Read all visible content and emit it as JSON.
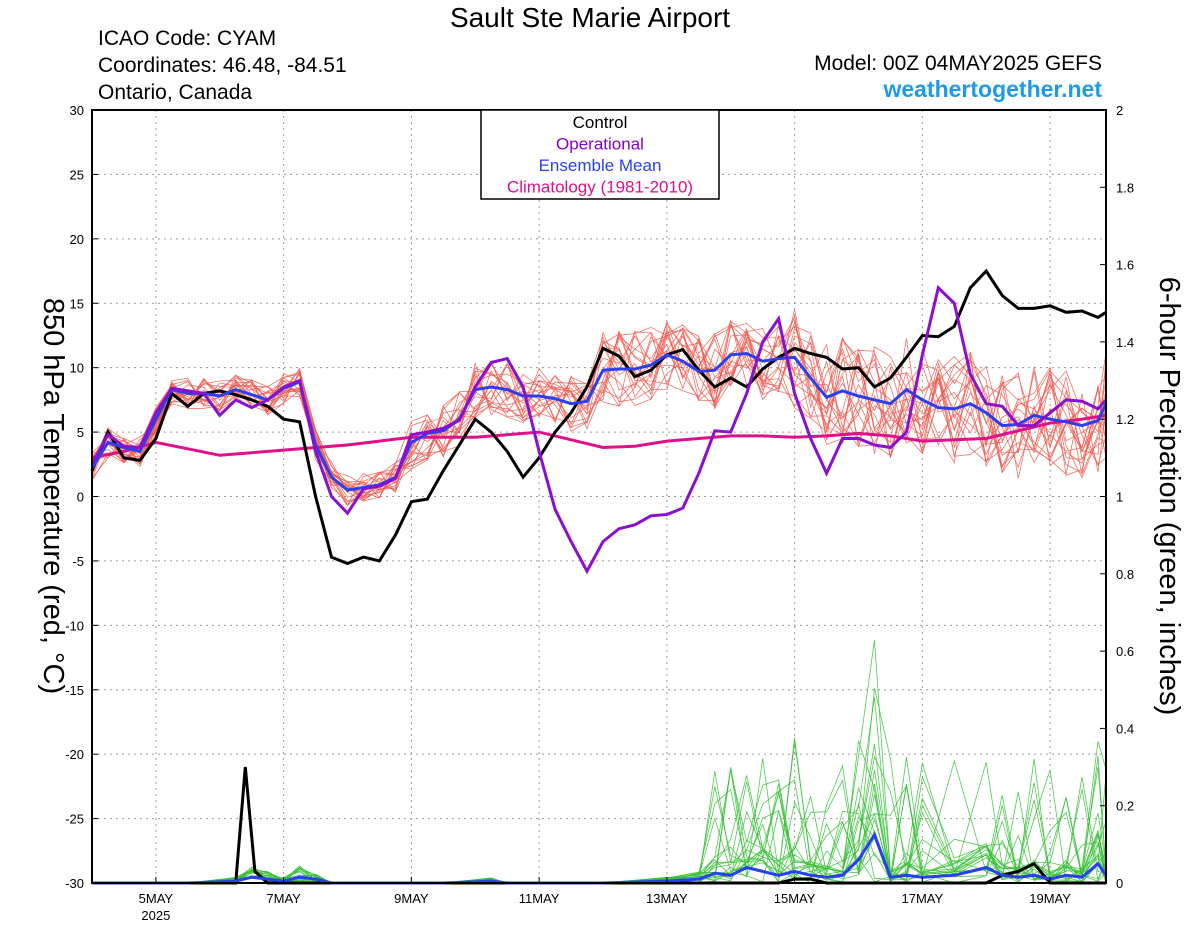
{
  "header": {
    "title": "Sault Ste Marie Airport",
    "icao": "ICAO Code: CYAM",
    "coordinates": "Coordinates: 46.48, -84.51",
    "region": "Ontario, Canada",
    "model": "Model: 00Z 04MAY2025 GEFS",
    "website": "weathertogether.net"
  },
  "chart_data": {
    "type": "line",
    "ylabel_left": "850 hPa Temperature (red, °C)",
    "ylabel_right": "6-hour Precipation (green, inches)",
    "ylim_left": [
      -30,
      30
    ],
    "ylim_right": [
      0,
      2
    ],
    "yticks_left": [
      30,
      25,
      20,
      15,
      10,
      5,
      0,
      -5,
      -10,
      -15,
      -20,
      -25,
      -30
    ],
    "yticks_right": [
      2,
      1.8,
      1.6,
      1.4,
      1.2,
      1,
      0.8,
      0.6,
      0.4,
      0.2,
      0
    ],
    "x_range_days": [
      4.0,
      19.875
    ],
    "xticks": [
      {
        "day": 5,
        "label": "5MAY",
        "sublabel": "2025"
      },
      {
        "day": 7,
        "label": "7MAY"
      },
      {
        "day": 9,
        "label": "9MAY"
      },
      {
        "day": 11,
        "label": "11MAY"
      },
      {
        "day": 13,
        "label": "13MAY"
      },
      {
        "day": 15,
        "label": "15MAY"
      },
      {
        "day": 17,
        "label": "17MAY"
      },
      {
        "day": 19,
        "label": "19MAY"
      }
    ],
    "grid": true,
    "legend_position": "top-center",
    "legend": [
      {
        "label": "Control",
        "color": "#000000"
      },
      {
        "label": "Operational",
        "color": "#8800cc"
      },
      {
        "label": "Ensemble Mean",
        "color": "#2a3ff0"
      },
      {
        "label": "Climatology (1981-2010)",
        "color": "#e0108a"
      }
    ],
    "colors": {
      "members": "#f05a50",
      "precip_members": "#34c034",
      "control": "#000000",
      "operational": "#8a10d0",
      "mean": "#2a3ff0",
      "climatology": "#e0108a"
    },
    "temperature": {
      "control": [
        [
          4.0,
          2.0
        ],
        [
          4.25,
          5.0
        ],
        [
          4.5,
          3.0
        ],
        [
          4.75,
          2.8
        ],
        [
          5.0,
          4.5
        ],
        [
          5.25,
          8.0
        ],
        [
          5.5,
          7.0
        ],
        [
          5.75,
          8.0
        ],
        [
          6.0,
          8.2
        ],
        [
          6.25,
          7.9
        ],
        [
          6.5,
          7.5
        ],
        [
          6.75,
          7.0
        ],
        [
          7.0,
          6.0
        ],
        [
          7.25,
          5.8
        ],
        [
          7.5,
          0.0
        ],
        [
          7.75,
          -4.7
        ],
        [
          8.0,
          -5.2
        ],
        [
          8.25,
          -4.7
        ],
        [
          8.5,
          -5.0
        ],
        [
          8.75,
          -3.0
        ],
        [
          9.0,
          -0.4
        ],
        [
          9.25,
          -0.2
        ],
        [
          9.5,
          2.0
        ],
        [
          9.75,
          4.0
        ],
        [
          10.0,
          6.0
        ],
        [
          10.25,
          5.0
        ],
        [
          10.5,
          3.5
        ],
        [
          10.75,
          1.5
        ],
        [
          11.0,
          3.0
        ],
        [
          11.25,
          5.0
        ],
        [
          11.5,
          6.5
        ],
        [
          11.75,
          8.5
        ],
        [
          12.0,
          11.5
        ],
        [
          12.25,
          10.9
        ],
        [
          12.5,
          9.3
        ],
        [
          12.75,
          9.8
        ],
        [
          13.0,
          11.0
        ],
        [
          13.25,
          11.4
        ],
        [
          13.5,
          9.8
        ],
        [
          13.75,
          8.5
        ],
        [
          14.0,
          9.2
        ],
        [
          14.25,
          8.5
        ],
        [
          14.5,
          9.9
        ],
        [
          14.75,
          10.8
        ],
        [
          15.0,
          11.5
        ],
        [
          15.25,
          11.1
        ],
        [
          15.5,
          10.8
        ],
        [
          15.75,
          9.9
        ],
        [
          16.0,
          10.0
        ],
        [
          16.25,
          8.5
        ],
        [
          16.5,
          9.2
        ],
        [
          16.75,
          10.8
        ],
        [
          17.0,
          12.5
        ],
        [
          17.25,
          12.4
        ],
        [
          17.5,
          13.2
        ],
        [
          17.75,
          16.2
        ],
        [
          18.0,
          17.5
        ],
        [
          18.25,
          15.6
        ],
        [
          18.5,
          14.6
        ],
        [
          18.75,
          14.6
        ],
        [
          19.0,
          14.8
        ],
        [
          19.25,
          14.3
        ],
        [
          19.5,
          14.4
        ],
        [
          19.75,
          13.9
        ],
        [
          19.875,
          14.3
        ]
      ],
      "operational": [
        [
          4.0,
          2.5
        ],
        [
          4.25,
          4.8
        ],
        [
          4.5,
          3.9
        ],
        [
          4.75,
          3.8
        ],
        [
          5.0,
          6.5
        ],
        [
          5.25,
          8.4
        ],
        [
          5.5,
          8.2
        ],
        [
          5.75,
          8.0
        ],
        [
          6.0,
          6.3
        ],
        [
          6.25,
          7.5
        ],
        [
          6.5,
          6.9
        ],
        [
          6.75,
          7.5
        ],
        [
          7.0,
          8.5
        ],
        [
          7.25,
          9.0
        ],
        [
          7.5,
          3.5
        ],
        [
          7.75,
          0.0
        ],
        [
          8.0,
          -1.3
        ],
        [
          8.25,
          0.6
        ],
        [
          8.5,
          0.8
        ],
        [
          8.75,
          1.4
        ],
        [
          9.0,
          4.8
        ],
        [
          9.25,
          5.0
        ],
        [
          9.5,
          5.3
        ],
        [
          9.75,
          5.9
        ],
        [
          10.0,
          8.5
        ],
        [
          10.25,
          10.4
        ],
        [
          10.5,
          10.7
        ],
        [
          10.75,
          8.5
        ],
        [
          11.0,
          3.5
        ],
        [
          11.25,
          -1.0
        ],
        [
          11.5,
          -3.5
        ],
        [
          11.75,
          -5.8
        ],
        [
          12.0,
          -3.5
        ],
        [
          12.25,
          -2.5
        ],
        [
          12.5,
          -2.2
        ],
        [
          12.75,
          -1.5
        ],
        [
          13.0,
          -1.4
        ],
        [
          13.25,
          -0.9
        ],
        [
          13.5,
          1.8
        ],
        [
          13.75,
          5.1
        ],
        [
          14.0,
          5.0
        ],
        [
          14.25,
          8.0
        ],
        [
          14.5,
          12.0
        ],
        [
          14.75,
          13.8
        ],
        [
          15.0,
          8.0
        ],
        [
          15.25,
          4.5
        ],
        [
          15.5,
          1.8
        ],
        [
          15.75,
          4.5
        ],
        [
          16.0,
          4.5
        ],
        [
          16.25,
          4.0
        ],
        [
          16.5,
          3.8
        ],
        [
          16.75,
          5.0
        ],
        [
          17.0,
          11.0
        ],
        [
          17.25,
          16.2
        ],
        [
          17.5,
          15.0
        ],
        [
          17.75,
          9.5
        ],
        [
          18.0,
          7.2
        ],
        [
          18.25,
          7.0
        ],
        [
          18.5,
          5.5
        ],
        [
          18.75,
          5.5
        ],
        [
          19.0,
          6.5
        ],
        [
          19.25,
          7.5
        ],
        [
          19.5,
          7.4
        ],
        [
          19.75,
          6.8
        ],
        [
          19.875,
          7.5
        ]
      ],
      "ensemble_mean": [
        [
          4.0,
          2.2
        ],
        [
          4.25,
          4.2
        ],
        [
          4.5,
          3.8
        ],
        [
          4.75,
          3.5
        ],
        [
          5.0,
          6.0
        ],
        [
          5.25,
          8.3
        ],
        [
          5.5,
          8.0
        ],
        [
          5.75,
          8.0
        ],
        [
          6.0,
          7.8
        ],
        [
          6.25,
          8.3
        ],
        [
          6.5,
          7.9
        ],
        [
          6.75,
          7.5
        ],
        [
          7.0,
          8.4
        ],
        [
          7.25,
          8.9
        ],
        [
          7.5,
          4.0
        ],
        [
          7.75,
          1.5
        ],
        [
          8.0,
          0.5
        ],
        [
          8.25,
          0.7
        ],
        [
          8.5,
          0.9
        ],
        [
          8.75,
          1.5
        ],
        [
          9.0,
          4.2
        ],
        [
          9.25,
          4.9
        ],
        [
          9.5,
          5.1
        ],
        [
          9.75,
          6.0
        ],
        [
          10.0,
          8.3
        ],
        [
          10.25,
          8.5
        ],
        [
          10.5,
          8.3
        ],
        [
          10.75,
          7.8
        ],
        [
          11.0,
          7.8
        ],
        [
          11.25,
          7.6
        ],
        [
          11.5,
          7.2
        ],
        [
          11.75,
          7.4
        ],
        [
          12.0,
          9.8
        ],
        [
          12.25,
          9.9
        ],
        [
          12.5,
          9.9
        ],
        [
          12.75,
          10.2
        ],
        [
          13.0,
          11.0
        ],
        [
          13.25,
          10.5
        ],
        [
          13.5,
          9.7
        ],
        [
          13.75,
          9.8
        ],
        [
          14.0,
          11.0
        ],
        [
          14.25,
          11.1
        ],
        [
          14.5,
          10.5
        ],
        [
          14.75,
          10.7
        ],
        [
          15.0,
          10.8
        ],
        [
          15.25,
          9.2
        ],
        [
          15.5,
          7.7
        ],
        [
          15.75,
          8.2
        ],
        [
          16.0,
          7.8
        ],
        [
          16.25,
          7.5
        ],
        [
          16.5,
          7.2
        ],
        [
          16.75,
          8.3
        ],
        [
          17.0,
          7.5
        ],
        [
          17.25,
          6.9
        ],
        [
          17.5,
          6.8
        ],
        [
          17.75,
          7.2
        ],
        [
          18.0,
          6.5
        ],
        [
          18.25,
          5.5
        ],
        [
          18.5,
          5.6
        ],
        [
          18.75,
          6.3
        ],
        [
          19.0,
          6.0
        ],
        [
          19.25,
          5.8
        ],
        [
          19.5,
          5.5
        ],
        [
          19.75,
          5.9
        ],
        [
          19.875,
          7.2
        ]
      ],
      "climatology": [
        [
          4.0,
          3.0
        ],
        [
          4.5,
          3.5
        ],
        [
          5.0,
          4.2
        ],
        [
          5.5,
          3.7
        ],
        [
          6.0,
          3.2
        ],
        [
          6.5,
          3.4
        ],
        [
          7.0,
          3.6
        ],
        [
          7.5,
          3.8
        ],
        [
          8.0,
          4.0
        ],
        [
          8.5,
          4.3
        ],
        [
          9.0,
          4.6
        ],
        [
          9.5,
          4.6
        ],
        [
          10.0,
          4.6
        ],
        [
          10.5,
          4.8
        ],
        [
          11.0,
          5.0
        ],
        [
          11.5,
          4.4
        ],
        [
          12.0,
          3.8
        ],
        [
          12.5,
          3.9
        ],
        [
          13.0,
          4.3
        ],
        [
          13.5,
          4.5
        ],
        [
          14.0,
          4.7
        ],
        [
          14.5,
          4.7
        ],
        [
          15.0,
          4.6
        ],
        [
          15.5,
          4.7
        ],
        [
          16.0,
          4.9
        ],
        [
          16.5,
          4.7
        ],
        [
          17.0,
          4.3
        ],
        [
          17.5,
          4.4
        ],
        [
          18.0,
          4.5
        ],
        [
          18.5,
          5.1
        ],
        [
          19.0,
          5.7
        ],
        [
          19.5,
          6.0
        ],
        [
          19.875,
          6.3
        ]
      ]
    },
    "precipitation": {
      "control": [
        [
          4.0,
          0
        ],
        [
          5.5,
          0
        ],
        [
          6.25,
          0
        ],
        [
          6.4,
          0.3
        ],
        [
          6.55,
          0.03
        ],
        [
          6.75,
          0
        ],
        [
          8.5,
          0
        ],
        [
          10.0,
          0
        ],
        [
          11.5,
          0
        ],
        [
          14.5,
          0
        ],
        [
          14.75,
          0
        ],
        [
          15.0,
          0.01
        ],
        [
          15.25,
          0.01
        ],
        [
          15.5,
          0
        ],
        [
          16.0,
          0
        ],
        [
          18.0,
          0
        ],
        [
          18.25,
          0.02
        ],
        [
          18.5,
          0.03
        ],
        [
          18.75,
          0.05
        ],
        [
          19.0,
          0
        ],
        [
          19.875,
          0
        ]
      ],
      "ensemble_mean": [
        [
          4.0,
          0
        ],
        [
          5.5,
          0
        ],
        [
          6.25,
          0.005
        ],
        [
          6.5,
          0.015
        ],
        [
          6.75,
          0.01
        ],
        [
          7.0,
          0.005
        ],
        [
          7.25,
          0.015
        ],
        [
          7.5,
          0.01
        ],
        [
          7.75,
          0
        ],
        [
          9.5,
          0
        ],
        [
          10.25,
          0.005
        ],
        [
          10.5,
          0
        ],
        [
          12.0,
          0
        ],
        [
          13.0,
          0.005
        ],
        [
          13.5,
          0.01
        ],
        [
          13.75,
          0.025
        ],
        [
          14.0,
          0.02
        ],
        [
          14.25,
          0.04
        ],
        [
          14.5,
          0.03
        ],
        [
          14.75,
          0.02
        ],
        [
          15.0,
          0.03
        ],
        [
          15.25,
          0.02
        ],
        [
          15.5,
          0.015
        ],
        [
          15.75,
          0.02
        ],
        [
          16.0,
          0.06
        ],
        [
          16.25,
          0.125
        ],
        [
          16.5,
          0.015
        ],
        [
          16.75,
          0.02
        ],
        [
          17.0,
          0.015
        ],
        [
          17.5,
          0.02
        ],
        [
          18.0,
          0.04
        ],
        [
          18.25,
          0.02
        ],
        [
          18.5,
          0.015
        ],
        [
          18.75,
          0.02
        ],
        [
          19.0,
          0.01
        ],
        [
          19.25,
          0.02
        ],
        [
          19.5,
          0.015
        ],
        [
          19.75,
          0.05
        ],
        [
          19.875,
          0.02
        ]
      ]
    }
  }
}
